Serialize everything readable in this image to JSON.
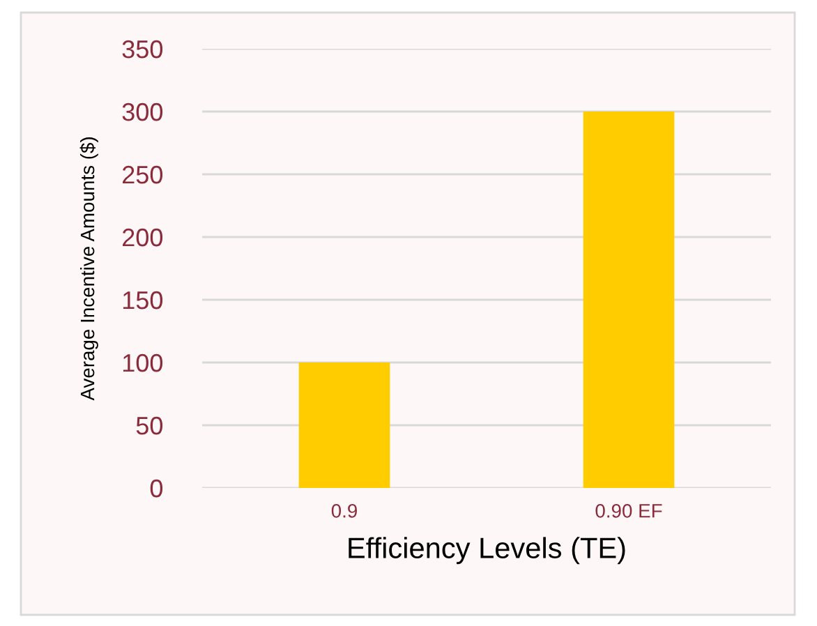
{
  "chart_data": {
    "type": "bar",
    "xlabel": "Efficiency Levels (TE)",
    "ylabel": "Average Incentive Amounts ($)",
    "categories": [
      "0.9",
      "0.90 EF"
    ],
    "values": [
      100,
      300
    ],
    "color": "#ffcc00",
    "ylim": [
      0,
      350
    ],
    "yticks": [
      0,
      50,
      100,
      150,
      200,
      250,
      300,
      350
    ],
    "grid": "y"
  }
}
